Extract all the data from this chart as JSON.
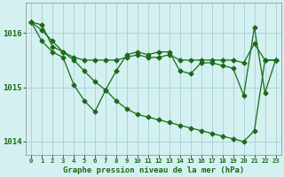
{
  "title": "Graphe pression niveau de la mer (hPa)",
  "background_color": "#d4f0f0",
  "line_color": "#1a6b1a",
  "grid_color": "#99cccc",
  "ylim": [
    1013.75,
    1016.55
  ],
  "yticks": [
    1014,
    1015,
    1016
  ],
  "ytick_labels": [
    "1014",
    "1015",
    "1016"
  ],
  "x_ticks": [
    0,
    1,
    2,
    3,
    4,
    5,
    6,
    7,
    8,
    9,
    10,
    11,
    12,
    13,
    14,
    15,
    16,
    17,
    18,
    19,
    20,
    21,
    22,
    23
  ],
  "line_a": [
    1016.2,
    1016.15,
    1015.75,
    1015.65,
    1015.55,
    1015.5,
    1015.5,
    1015.5,
    1015.5,
    1015.55,
    1015.6,
    1015.55,
    1015.55,
    1015.6,
    1015.5,
    1015.5,
    1015.5,
    1015.5,
    1015.5,
    1015.5,
    1015.45,
    1015.8,
    1015.5,
    1015.5
  ],
  "line_b": [
    1016.2,
    1015.85,
    1015.65,
    1015.55,
    1015.05,
    1014.75,
    1014.55,
    1014.95,
    1015.3,
    1015.6,
    1015.65,
    1015.6,
    1015.65,
    1015.65,
    1015.3,
    1015.25,
    1015.45,
    1015.45,
    1015.4,
    1015.35,
    1014.85,
    1016.1,
    1014.9,
    1015.5
  ],
  "line_c": [
    1016.2,
    1016.05,
    1015.85,
    1015.65,
    1015.5,
    1015.3,
    1015.1,
    1014.95,
    1014.75,
    1014.6,
    1014.5,
    1014.45,
    1014.4,
    1014.35,
    1014.3,
    1014.25,
    1014.2,
    1014.15,
    1014.1,
    1014.05,
    1014.0,
    1014.2,
    1015.5,
    1015.5
  ]
}
